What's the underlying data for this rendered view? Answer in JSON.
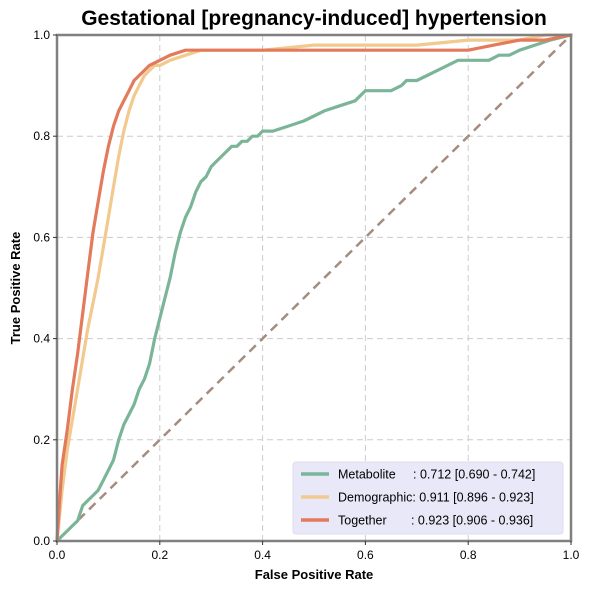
{
  "chart_data": {
    "type": "line",
    "title": "Gestational [pregnancy-induced] hypertension",
    "xlabel": "False Positive Rate",
    "ylabel": "True Positive Rate",
    "xlim": [
      0,
      1
    ],
    "ylim": [
      0,
      1
    ],
    "xticks": [
      "0.0",
      "0.2",
      "0.4",
      "0.6",
      "0.8",
      "1.0"
    ],
    "yticks": [
      "0.0",
      "0.2",
      "0.4",
      "0.6",
      "0.8",
      "1.0"
    ],
    "grid": true,
    "legend_position": "lower-right",
    "colors": {
      "axes_frame": "#808080",
      "grid": "#cccccc",
      "diagonal": "#a58c7f",
      "legend_bg": "#e8e8f8"
    },
    "series": [
      {
        "name": "Metabolite",
        "label": "Metabolite     : 0.712 [0.690 - 0.742]",
        "color": "#7bb597",
        "x": [
          0.0,
          0.01,
          0.02,
          0.03,
          0.04,
          0.05,
          0.06,
          0.07,
          0.08,
          0.09,
          0.1,
          0.11,
          0.12,
          0.13,
          0.14,
          0.15,
          0.16,
          0.17,
          0.18,
          0.19,
          0.2,
          0.21,
          0.22,
          0.23,
          0.24,
          0.25,
          0.26,
          0.27,
          0.28,
          0.29,
          0.3,
          0.31,
          0.32,
          0.33,
          0.34,
          0.35,
          0.36,
          0.37,
          0.38,
          0.39,
          0.4,
          0.42,
          0.45,
          0.48,
          0.5,
          0.52,
          0.55,
          0.58,
          0.6,
          0.62,
          0.65,
          0.67,
          0.68,
          0.7,
          0.72,
          0.74,
          0.76,
          0.78,
          0.8,
          0.82,
          0.84,
          0.86,
          0.88,
          0.9,
          0.93,
          0.96,
          1.0
        ],
        "y": [
          0.0,
          0.01,
          0.02,
          0.03,
          0.04,
          0.07,
          0.08,
          0.09,
          0.1,
          0.12,
          0.14,
          0.16,
          0.2,
          0.23,
          0.25,
          0.27,
          0.3,
          0.32,
          0.35,
          0.4,
          0.44,
          0.48,
          0.52,
          0.57,
          0.61,
          0.64,
          0.66,
          0.69,
          0.71,
          0.72,
          0.74,
          0.75,
          0.76,
          0.77,
          0.78,
          0.78,
          0.79,
          0.79,
          0.8,
          0.8,
          0.81,
          0.81,
          0.82,
          0.83,
          0.84,
          0.85,
          0.86,
          0.87,
          0.89,
          0.89,
          0.89,
          0.9,
          0.91,
          0.91,
          0.92,
          0.93,
          0.94,
          0.95,
          0.95,
          0.95,
          0.95,
          0.96,
          0.96,
          0.97,
          0.98,
          0.99,
          1.0
        ]
      },
      {
        "name": "Demographic",
        "label": "Demographic: 0.911 [0.896 - 0.923]",
        "color": "#f2c98e",
        "x": [
          0.0,
          0.005,
          0.01,
          0.02,
          0.03,
          0.04,
          0.05,
          0.06,
          0.07,
          0.08,
          0.09,
          0.1,
          0.11,
          0.12,
          0.13,
          0.14,
          0.15,
          0.16,
          0.17,
          0.18,
          0.19,
          0.2,
          0.22,
          0.25,
          0.28,
          0.32,
          0.4,
          0.5,
          0.6,
          0.7,
          0.8,
          0.85,
          0.9,
          0.95,
          1.0
        ],
        "y": [
          0.0,
          0.05,
          0.1,
          0.18,
          0.24,
          0.3,
          0.36,
          0.42,
          0.47,
          0.52,
          0.58,
          0.64,
          0.7,
          0.76,
          0.81,
          0.85,
          0.88,
          0.9,
          0.92,
          0.93,
          0.94,
          0.94,
          0.95,
          0.96,
          0.97,
          0.97,
          0.97,
          0.98,
          0.98,
          0.98,
          0.99,
          0.99,
          0.99,
          1.0,
          1.0
        ]
      },
      {
        "name": "Together",
        "label": "Together       : 0.923 [0.906 - 0.936]",
        "color": "#e37a5c",
        "x": [
          0.0,
          0.005,
          0.01,
          0.02,
          0.03,
          0.04,
          0.05,
          0.06,
          0.07,
          0.08,
          0.09,
          0.1,
          0.11,
          0.12,
          0.13,
          0.14,
          0.15,
          0.16,
          0.17,
          0.18,
          0.2,
          0.22,
          0.25,
          0.28,
          0.3,
          0.4,
          0.5,
          0.6,
          0.7,
          0.8,
          0.85,
          0.9,
          0.95,
          1.0
        ],
        "y": [
          0.0,
          0.08,
          0.15,
          0.22,
          0.3,
          0.37,
          0.45,
          0.53,
          0.61,
          0.67,
          0.73,
          0.78,
          0.82,
          0.85,
          0.87,
          0.89,
          0.91,
          0.92,
          0.93,
          0.94,
          0.95,
          0.96,
          0.97,
          0.97,
          0.97,
          0.97,
          0.97,
          0.97,
          0.97,
          0.97,
          0.98,
          0.99,
          0.99,
          1.0
        ]
      }
    ],
    "reference_line": {
      "x": [
        0,
        1
      ],
      "y": [
        0,
        1
      ]
    }
  }
}
